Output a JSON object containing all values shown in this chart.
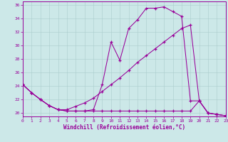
{
  "xlabel": "Windchill (Refroidissement éolien,°C)",
  "bg_color": "#cce8e8",
  "line_color": "#990099",
  "grid_color": "#aacccc",
  "xlim": [
    0,
    23
  ],
  "ylim": [
    19.5,
    36.5
  ],
  "ytick_vals": [
    20,
    22,
    24,
    26,
    28,
    30,
    32,
    34,
    36
  ],
  "xtick_vals": [
    0,
    1,
    2,
    3,
    4,
    5,
    6,
    7,
    8,
    9,
    10,
    11,
    12,
    13,
    14,
    15,
    16,
    17,
    18,
    19,
    20,
    21,
    22,
    23
  ],
  "curve1_x": [
    0,
    1,
    2,
    3,
    4,
    5,
    6,
    7,
    8,
    9,
    10,
    11,
    12,
    13,
    14,
    15,
    16,
    17,
    18,
    19,
    20,
    21,
    22,
    23
  ],
  "curve1_y": [
    24.2,
    23.0,
    22.0,
    21.1,
    20.5,
    20.3,
    20.3,
    20.3,
    20.5,
    24.2,
    30.5,
    27.8,
    32.5,
    33.8,
    35.5,
    35.5,
    35.7,
    35.0,
    34.3,
    21.8,
    21.8,
    20.0,
    19.8,
    19.6
  ],
  "curve2_x": [
    0,
    1,
    2,
    3,
    4,
    5,
    6,
    7,
    8,
    9,
    10,
    11,
    12,
    13,
    14,
    15,
    16,
    17,
    18,
    19,
    20,
    21,
    22,
    23
  ],
  "curve2_y": [
    24.2,
    23.0,
    22.0,
    21.1,
    20.5,
    20.3,
    20.3,
    20.3,
    20.3,
    20.3,
    20.3,
    20.3,
    20.3,
    20.3,
    20.3,
    20.3,
    20.3,
    20.3,
    20.3,
    20.3,
    21.8,
    20.0,
    19.8,
    19.6
  ],
  "curve3_x": [
    0,
    1,
    2,
    3,
    4,
    5,
    6,
    7,
    8,
    9,
    10,
    11,
    12,
    13,
    14,
    15,
    16,
    17,
    18,
    19,
    20,
    21,
    22,
    23
  ],
  "curve3_y": [
    24.2,
    23.0,
    22.0,
    21.1,
    20.5,
    20.5,
    21.0,
    21.5,
    22.2,
    23.2,
    24.2,
    25.2,
    26.3,
    27.5,
    28.5,
    29.5,
    30.5,
    31.5,
    32.5,
    33.0,
    21.8,
    20.0,
    19.8,
    19.6
  ]
}
